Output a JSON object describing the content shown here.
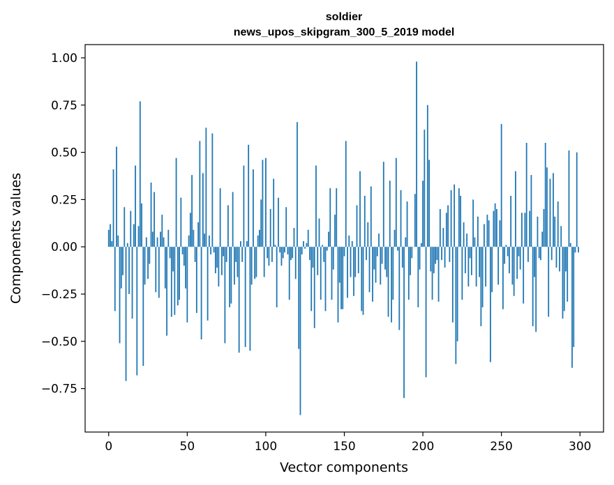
{
  "chart_data": {
    "type": "bar",
    "title": "soldier",
    "subtitle": "news_upos_skipgram_300_5_2019 model",
    "xlabel": "Vector components",
    "ylabel": "Components values",
    "xlim": [
      -15,
      315
    ],
    "ylim": [
      -0.98,
      1.07
    ],
    "xticks": [
      0,
      50,
      100,
      150,
      200,
      250,
      300
    ],
    "yticks": [
      -0.75,
      -0.5,
      -0.25,
      0.0,
      0.25,
      0.5,
      0.75,
      1.0
    ],
    "ytick_labels": [
      "−0.75",
      "−0.50",
      "−0.25",
      "0.00",
      "0.25",
      "0.50",
      "0.75",
      "1.00"
    ],
    "bar_color": "#1f77b4",
    "grid": false,
    "values": [
      0.09,
      0.12,
      0.03,
      0.41,
      -0.34,
      0.53,
      0.06,
      -0.51,
      -0.22,
      -0.15,
      0.21,
      -0.71,
      0.02,
      -0.25,
      0.19,
      -0.38,
      0.12,
      0.43,
      -0.68,
      0.11,
      0.77,
      0.23,
      -0.63,
      -0.2,
      0.05,
      -0.17,
      -0.09,
      0.34,
      0.08,
      0.29,
      -0.24,
      0.05,
      -0.27,
      0.08,
      0.17,
      0.05,
      -0.22,
      -0.47,
      0.09,
      -0.06,
      -0.37,
      -0.13,
      -0.36,
      0.47,
      -0.31,
      -0.28,
      0.26,
      -0.04,
      -0.1,
      -0.22,
      -0.4,
      0.06,
      0.18,
      0.38,
      0.09,
      -0.08,
      -0.35,
      0.13,
      0.56,
      -0.49,
      0.39,
      0.07,
      0.63,
      -0.39,
      0.06,
      -0.04,
      0.6,
      -0.03,
      -0.14,
      -0.11,
      -0.21,
      0.31,
      -0.15,
      -0.05,
      -0.51,
      -0.08,
      0.22,
      -0.32,
      -0.3,
      0.29,
      -0.2,
      -0.08,
      -0.16,
      -0.56,
      0.03,
      -0.08,
      0.43,
      -0.53,
      0.03,
      0.54,
      -0.55,
      -0.2,
      0.41,
      -0.17,
      -0.16,
      0.06,
      0.09,
      0.25,
      0.46,
      -0.16,
      0.47,
      -0.06,
      -0.1,
      0.2,
      -0.08,
      0.36,
      0.01,
      -0.32,
      0.26,
      -0.03,
      -0.1,
      -0.06,
      -0.03,
      0.21,
      -0.04,
      -0.28,
      -0.07,
      -0.06,
      0.1,
      -0.17,
      0.66,
      -0.54,
      -0.89,
      -0.04,
      0.03,
      -0.01,
      0.02,
      0.09,
      -0.07,
      -0.34,
      -0.11,
      -0.43,
      0.43,
      -0.15,
      0.15,
      -0.28,
      0.01,
      -0.08,
      -0.34,
      -0.02,
      0.08,
      0.31,
      -0.28,
      -0.12,
      0.17,
      0.31,
      -0.4,
      -0.19,
      -0.33,
      -0.33,
      -0.05,
      0.56,
      -0.27,
      0.06,
      -0.16,
      0.03,
      -0.26,
      -0.16,
      0.22,
      -0.14,
      0.4,
      -0.34,
      -0.36,
      0.27,
      -0.07,
      0.13,
      -0.24,
      0.32,
      -0.29,
      -0.12,
      -0.19,
      -0.05,
      0.07,
      -0.2,
      -0.09,
      0.45,
      -0.12,
      -0.16,
      -0.37,
      0.35,
      -0.4,
      -0.28,
      0.09,
      0.47,
      -0.02,
      -0.44,
      0.3,
      -0.11,
      -0.8,
      0.05,
      0.24,
      -0.28,
      -0.15,
      -0.06,
      0.0,
      0.28,
      0.98,
      -0.32,
      -0.12,
      0.02,
      0.35,
      0.62,
      -0.69,
      0.75,
      0.46,
      -0.13,
      -0.28,
      -0.14,
      -0.09,
      -0.07,
      -0.29,
      0.2,
      -0.07,
      0.1,
      -0.11,
      0.18,
      0.22,
      -0.08,
      0.3,
      -0.4,
      0.33,
      -0.62,
      -0.5,
      0.31,
      0.27,
      -0.28,
      0.13,
      -0.14,
      0.07,
      -0.21,
      -0.06,
      -0.15,
      0.25,
      0.05,
      -0.21,
      0.16,
      -0.16,
      -0.42,
      -0.32,
      0.12,
      -0.21,
      0.17,
      0.14,
      -0.61,
      -0.24,
      0.19,
      0.23,
      0.2,
      -0.2,
      0.14,
      0.65,
      -0.33,
      -0.09,
      0.01,
      -0.05,
      -0.14,
      0.27,
      -0.2,
      -0.26,
      0.4,
      -0.17,
      -0.05,
      -0.12,
      0.18,
      -0.3,
      0.18,
      0.55,
      -0.08,
      0.19,
      0.38,
      -0.42,
      -0.16,
      -0.45,
      0.16,
      -0.06,
      -0.07,
      0.08,
      0.2,
      0.55,
      0.42,
      -0.37,
      0.36,
      -0.07,
      0.39,
      0.16,
      -0.11,
      0.24,
      -0.13,
      0.11,
      -0.38,
      -0.34,
      -0.13,
      -0.29,
      0.51,
      0.02,
      -0.64,
      -0.53,
      -0.03,
      0.5,
      -0.03
    ],
    "x_start": 0
  }
}
